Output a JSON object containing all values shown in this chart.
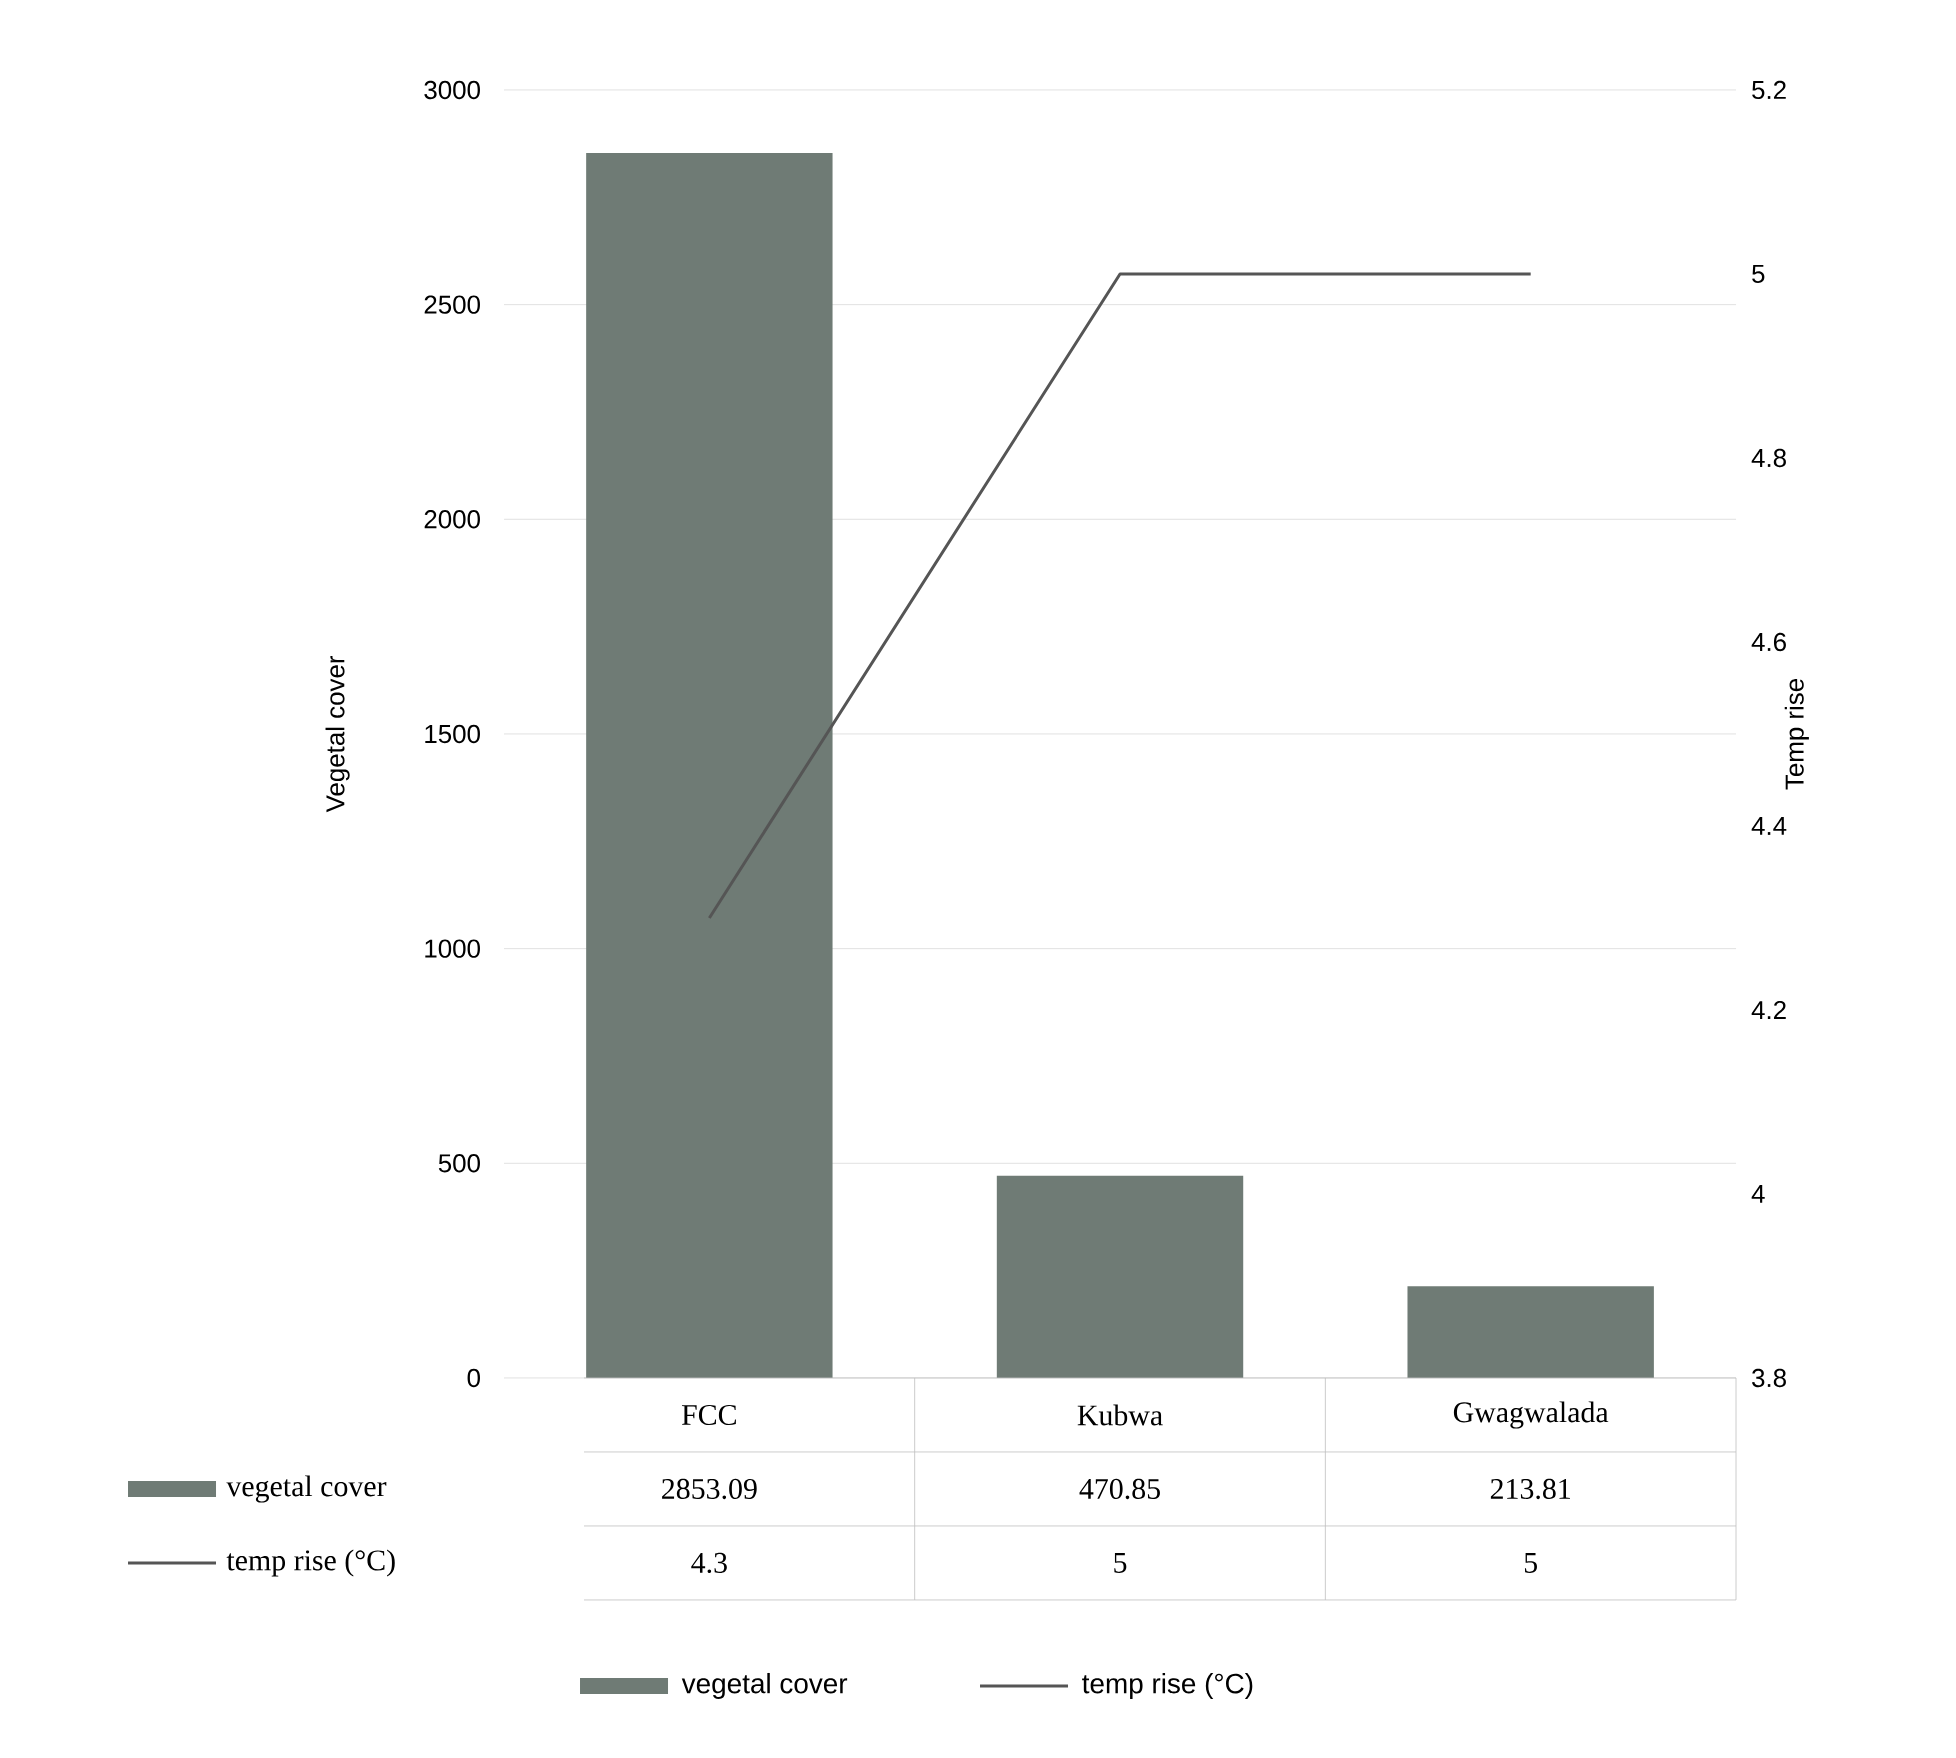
{
  "chart_data": {
    "type": "bar",
    "ylabel": "Vegetal cover",
    "y2label": "Temp rise",
    "categories": [
      "FCC",
      "Kubwa",
      "Gwagwalada"
    ],
    "series": [
      {
        "name": "vegetal cover",
        "color": "#6f7b75",
        "values": [
          2853.09,
          470.85,
          213.81
        ]
      },
      {
        "name": "temp rise (°C)",
        "type": "line",
        "axis": "y2",
        "color": "#555555",
        "values": [
          4.3,
          5,
          5
        ]
      }
    ],
    "ylim": [
      0,
      3000
    ],
    "yticks": [
      0,
      500,
      1000,
      1500,
      2000,
      2500,
      3000
    ],
    "y2lim": [
      3.8,
      5.2
    ],
    "y2ticks": [
      3.8,
      4,
      4.2,
      4.4,
      4.6,
      4.8,
      5,
      5.2
    ],
    "grid": "y",
    "legend": "bottom",
    "data_labels": true,
    "marker": "none",
    "line_style": "solid"
  }
}
